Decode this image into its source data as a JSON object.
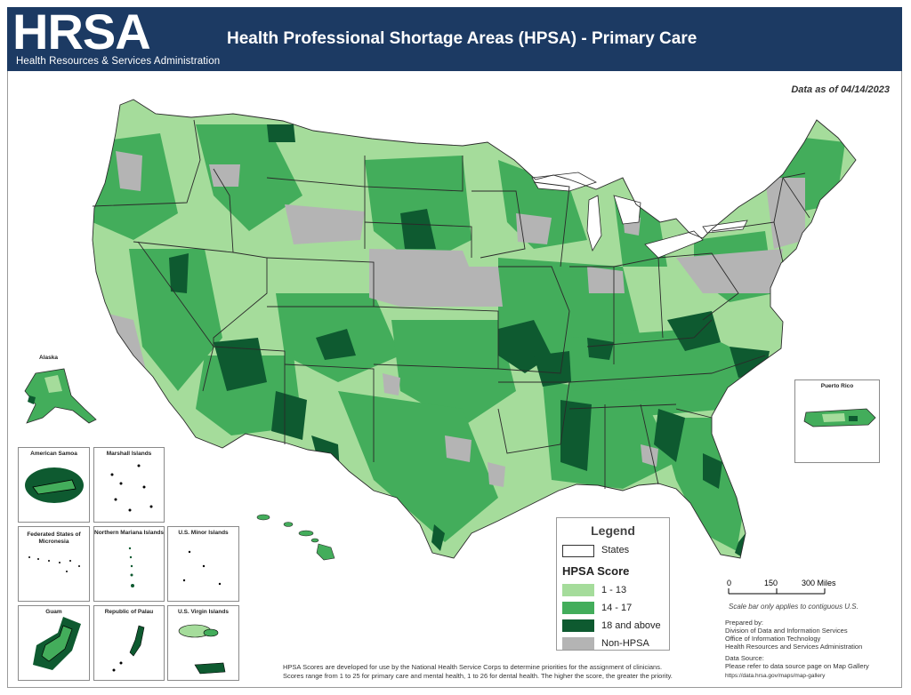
{
  "header": {
    "logo_text": "HRSA",
    "logo_sub": "Health Resources & Services Administration",
    "title": "Health Professional Shortage Areas (HPSA) - Primary Care",
    "bg_color": "#1c3a63"
  },
  "as_of": "Data as of 04/14/2023",
  "colors": {
    "score_low": "#a5dc9b",
    "score_mid": "#43ad5b",
    "score_high": "#0e5a30",
    "non_hpsa": "#b4b4b4",
    "state_border": "#2a2a2a"
  },
  "map": {
    "inset_labels": {
      "alaska": "Alaska",
      "puerto_rico": "Puerto Rico",
      "american_samoa": "American Samoa",
      "marshall_islands": "Marshall Islands",
      "micronesia": "Federated States of Micronesia",
      "northern_mariana": "Northern Mariana Islands",
      "us_minor_islands": "U.S. Minor Islands",
      "guam": "Guam",
      "palau": "Republic of Palau",
      "virgin_islands": "U.S. Virgin Islands"
    }
  },
  "legend": {
    "title": "Legend",
    "states_label": "States",
    "score_title": "HPSA Score",
    "items": [
      {
        "label": "1 - 13",
        "color": "#a5dc9b"
      },
      {
        "label": "14 - 17",
        "color": "#43ad5b"
      },
      {
        "label": "18 and above",
        "color": "#0e5a30"
      },
      {
        "label": "Non-HPSA",
        "color": "#b4b4b4"
      }
    ]
  },
  "scale": {
    "labels": [
      "0",
      "150",
      "300 Miles"
    ],
    "note": "Scale bar only applies to contiguous U.S."
  },
  "credits": {
    "prepared_by": "Prepared by:",
    "line1": "Division of Data and Information Services",
    "line2": "Office of Information Technology",
    "line3": "Health Resources and Services Administration",
    "data_source_label": "Data Source:",
    "data_source_text": "Please refer to data source page on Map Gallery",
    "url": "https://data.hrsa.gov/maps/map-gallery"
  },
  "footnote": {
    "line1": "HPSA Scores are developed for use by the National Health Service Corps to determine priorities for the assignment of clinicians.",
    "line2": "Scores range from 1 to 25 for primary care and mental health, 1 to 26 for dental health. The higher the score, the greater the priority."
  }
}
